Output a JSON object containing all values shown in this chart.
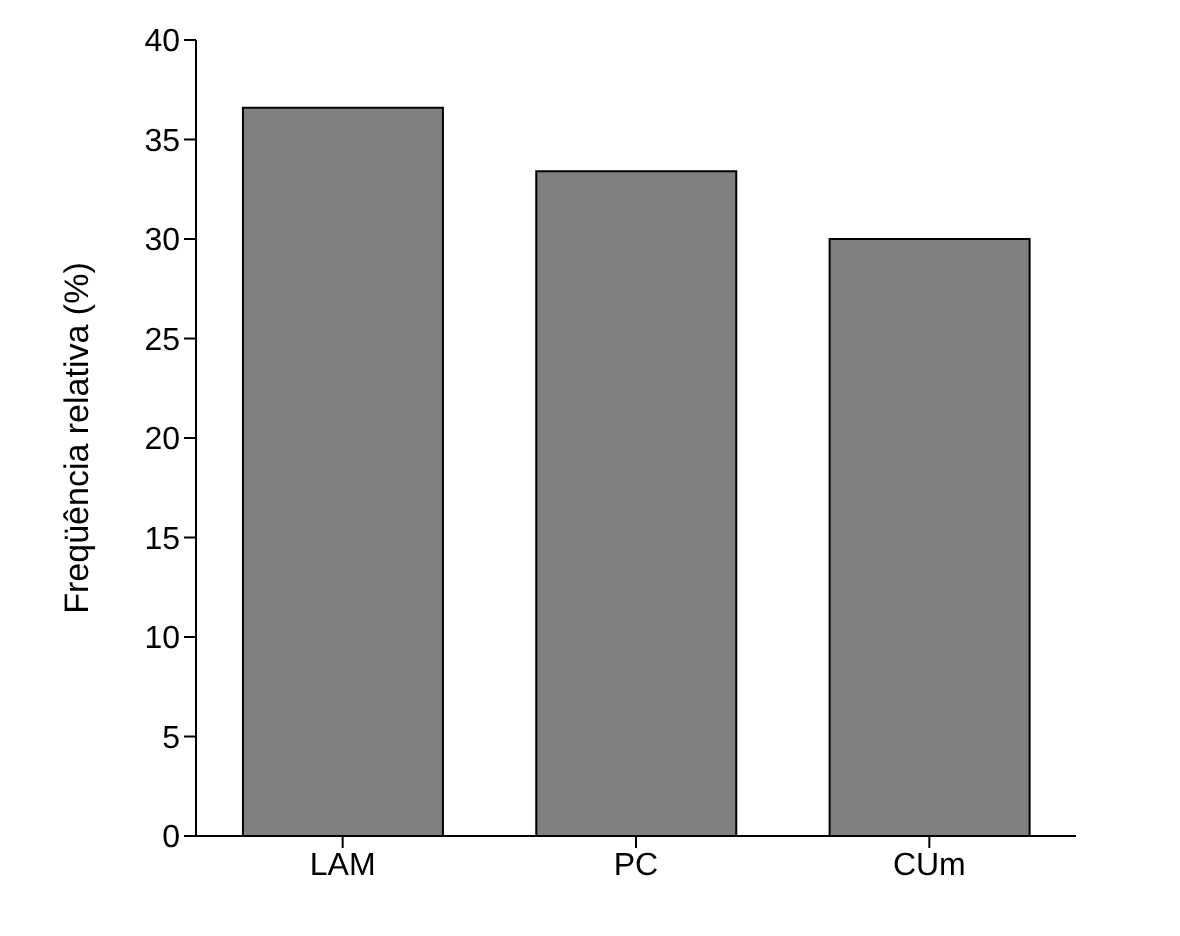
{
  "chart_data": {
    "type": "bar",
    "ylabel": "Freqüência relativa (%)",
    "categories": [
      "LAM",
      "PC",
      "CUm"
    ],
    "values": [
      36.6,
      33.4,
      30.0
    ],
    "color": "#808080",
    "ylim": [
      0,
      40
    ],
    "yticks": [
      0,
      5,
      10,
      15,
      20,
      25,
      30,
      35,
      40
    ],
    "grid": false
  }
}
